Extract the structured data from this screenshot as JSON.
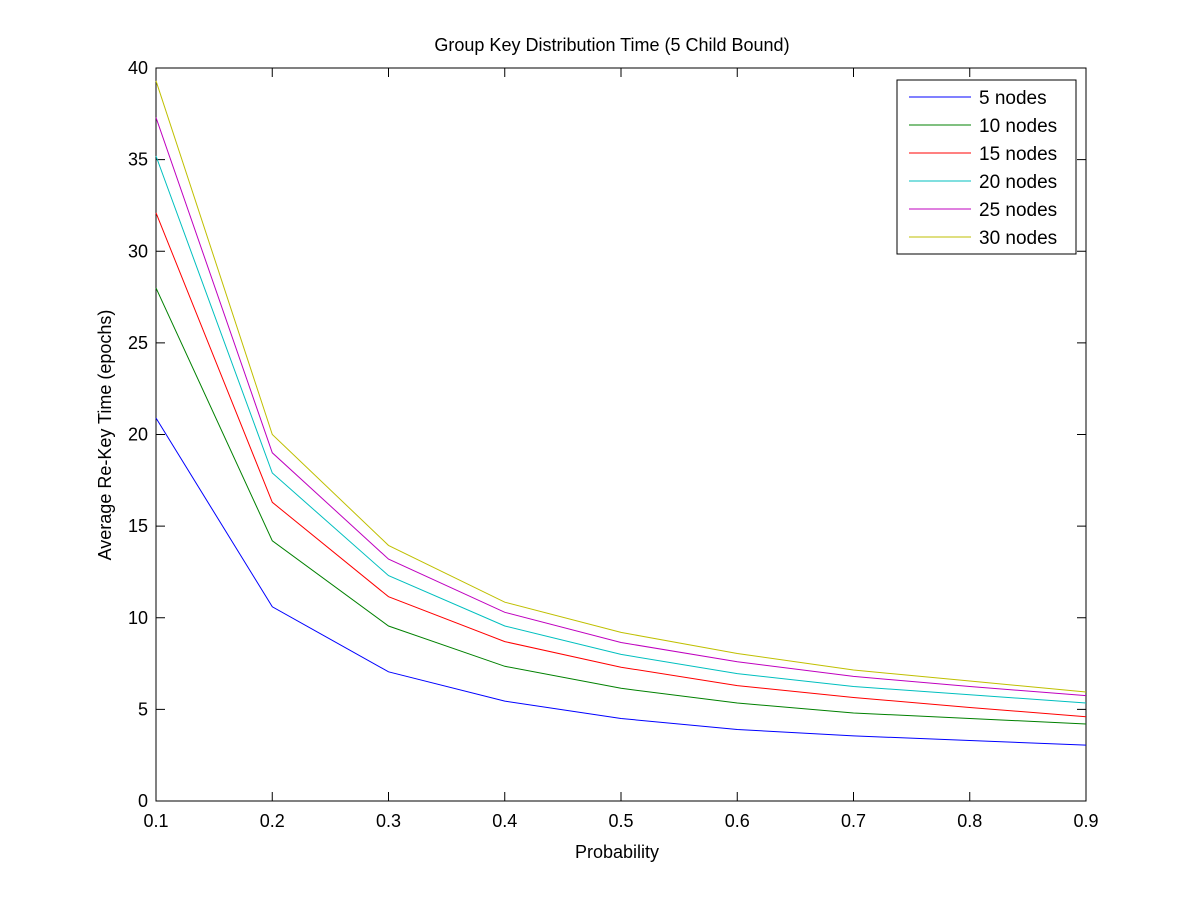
{
  "chart_data": {
    "type": "line",
    "title": "Group Key Distribution Time (5 Child Bound)",
    "xlabel": "Probability",
    "ylabel": "Average Re-Key Time (epochs)",
    "xlim": [
      0.1,
      0.9
    ],
    "ylim": [
      0,
      40
    ],
    "x_ticks": [
      0.1,
      0.2,
      0.3,
      0.4,
      0.5,
      0.6,
      0.7,
      0.8,
      0.9
    ],
    "y_ticks": [
      0,
      5,
      10,
      15,
      20,
      25,
      30,
      35,
      40
    ],
    "grid": false,
    "legend_position": "top-right",
    "x": [
      0.1,
      0.2,
      0.3,
      0.4,
      0.5,
      0.6,
      0.7,
      0.8,
      0.9
    ],
    "series": [
      {
        "name": "5 nodes",
        "color": "#0000ff",
        "values": [
          20.9,
          10.6,
          7.05,
          5.45,
          4.5,
          3.9,
          3.55,
          3.3,
          3.05
        ]
      },
      {
        "name": "10 nodes",
        "color": "#008000",
        "values": [
          28.0,
          14.2,
          9.55,
          7.35,
          6.15,
          5.35,
          4.8,
          4.5,
          4.2
        ]
      },
      {
        "name": "15 nodes",
        "color": "#ff0000",
        "values": [
          32.1,
          16.3,
          11.15,
          8.7,
          7.3,
          6.3,
          5.65,
          5.1,
          4.6
        ]
      },
      {
        "name": "20 nodes",
        "color": "#00bfbf",
        "values": [
          35.2,
          17.9,
          12.3,
          9.55,
          8.0,
          6.95,
          6.25,
          5.8,
          5.35
        ]
      },
      {
        "name": "25 nodes",
        "color": "#bf00bf",
        "values": [
          37.3,
          19.0,
          13.2,
          10.3,
          8.65,
          7.6,
          6.8,
          6.25,
          5.75
        ]
      },
      {
        "name": "30 nodes",
        "color": "#bfbf00",
        "values": [
          39.3,
          20.0,
          13.95,
          10.85,
          9.2,
          8.05,
          7.15,
          6.55,
          5.95
        ]
      }
    ]
  }
}
